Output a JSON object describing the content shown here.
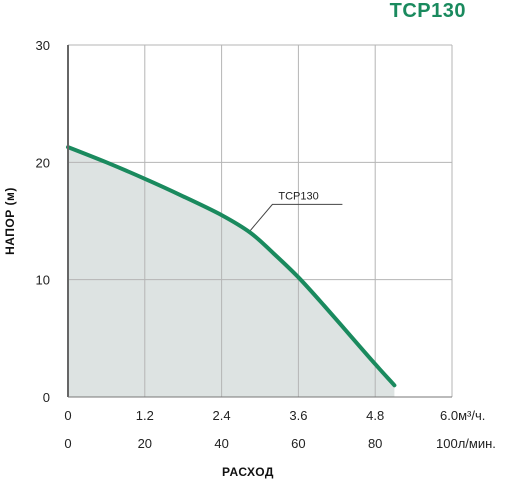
{
  "chart_data": {
    "type": "area",
    "title": "TCP130",
    "ylabel": "НАПОР (м)",
    "xlabel": "РАСХОД",
    "ylim": [
      0,
      30
    ],
    "yticks": [
      "0",
      "10",
      "20",
      "30"
    ],
    "xlim_m3h": [
      0,
      6.0
    ],
    "xticks_m3h": [
      "0",
      "1.2",
      "2.4",
      "3.6",
      "4.8",
      "6.0м³/ч."
    ],
    "xticks_lmin": [
      "0",
      "20",
      "40",
      "60",
      "80",
      "100л/мин."
    ],
    "grid": true,
    "series": [
      {
        "name": "TCP130",
        "color": "#1a8a5e",
        "fill": "#dde3e2",
        "x": [
          0,
          0.6,
          1.2,
          1.8,
          2.4,
          2.85,
          3.2,
          3.6,
          4.0,
          4.4,
          4.8,
          5.1
        ],
        "y": [
          21.3,
          20.0,
          18.6,
          17.1,
          15.5,
          14.0,
          12.3,
          10.2,
          7.8,
          5.3,
          2.8,
          1.0
        ]
      }
    ],
    "annotation": {
      "text": "TCP130",
      "x": 2.85,
      "y": 14.2
    }
  }
}
